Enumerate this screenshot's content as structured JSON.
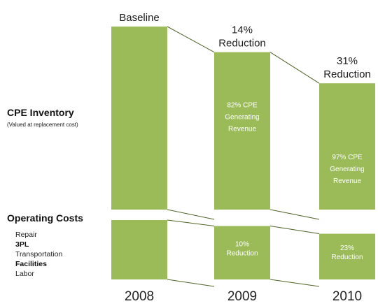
{
  "chart_data": {
    "type": "bar",
    "categories": [
      "2008",
      "2009",
      "2010"
    ],
    "series": [
      {
        "name": "CPE Inventory",
        "subtitle": "(Valued at replacement cost)",
        "head_labels": [
          "Baseline",
          "14%\nReduction",
          "31%\nReduction"
        ],
        "bar_labels": [
          "",
          "82% CPE\nGenerating\nRevenue",
          "97% CPE\nGenerating\nRevenue"
        ],
        "values": [
          100,
          86,
          69
        ]
      },
      {
        "name": "Operating Costs",
        "items": [
          "Repair",
          "3PL",
          "Transportation",
          "Facilities",
          "Labor"
        ],
        "bar_labels": [
          "",
          "10%\nReduction",
          "23%\nReduction"
        ],
        "values": [
          100,
          90,
          77
        ]
      }
    ],
    "ylabel": "",
    "xlabel": "",
    "colors": {
      "bar": "#9bbb59",
      "connector": "#4f6228",
      "bar_text": "#ffffff"
    },
    "legend": "none",
    "grid": false
  }
}
